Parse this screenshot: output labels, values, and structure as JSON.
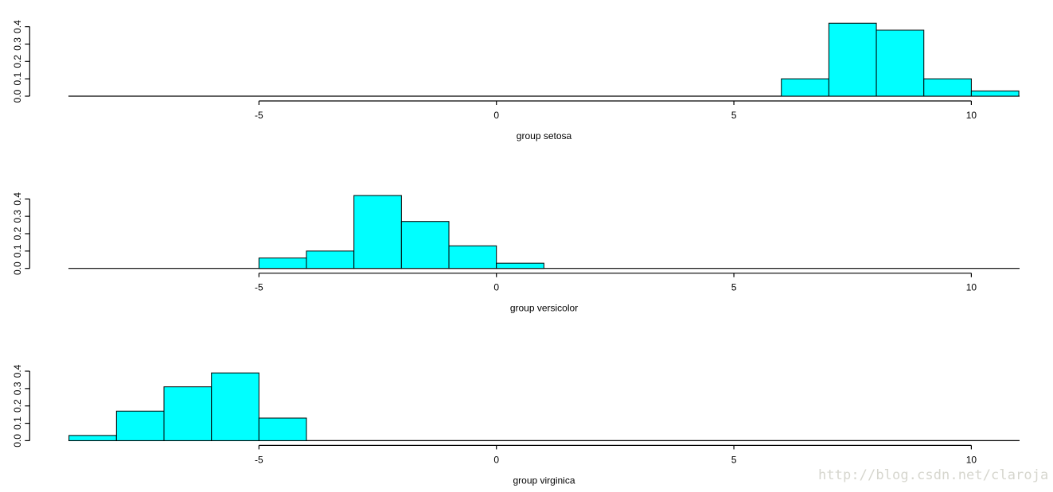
{
  "watermark": {
    "text": "http://blog.csdn.net/claroja",
    "color": "#d6d6ce"
  },
  "chart_data": [
    {
      "type": "bar",
      "subtype": "histogram",
      "title": "group setosa",
      "xlabel": "group setosa",
      "ylabel": "",
      "bin_edges": [
        6,
        7,
        8,
        9,
        10,
        11
      ],
      "densities": [
        0.1,
        0.42,
        0.38,
        0.1,
        0.03
      ],
      "x_ticks": [
        -5,
        0,
        5,
        10
      ],
      "x_tick_labels": [
        "-5",
        "0",
        "5",
        "10"
      ],
      "y_ticks": [
        0,
        0.1,
        0.2,
        0.3,
        0.4
      ],
      "y_tick_labels": [
        "0.0",
        "0.1",
        "0.2",
        "0.3",
        "0.4"
      ],
      "xlim": [
        -9,
        11
      ],
      "ylim": [
        0,
        0.4
      ],
      "grid": false,
      "bar_fill": "#00ffff",
      "bar_stroke": "#000000"
    },
    {
      "type": "bar",
      "subtype": "histogram",
      "title": "group versicolor",
      "xlabel": "group versicolor",
      "ylabel": "",
      "bin_edges": [
        -5,
        -4,
        -3,
        -2,
        -1,
        0,
        1
      ],
      "densities": [
        0.06,
        0.1,
        0.42,
        0.27,
        0.13,
        0.03
      ],
      "x_ticks": [
        -5,
        0,
        5,
        10
      ],
      "x_tick_labels": [
        "-5",
        "0",
        "5",
        "10"
      ],
      "y_ticks": [
        0,
        0.1,
        0.2,
        0.3,
        0.4
      ],
      "y_tick_labels": [
        "0.0",
        "0.1",
        "0.2",
        "0.3",
        "0.4"
      ],
      "xlim": [
        -9,
        11
      ],
      "ylim": [
        0,
        0.4
      ],
      "grid": false,
      "bar_fill": "#00ffff",
      "bar_stroke": "#000000"
    },
    {
      "type": "bar",
      "subtype": "histogram",
      "title": "group virginica",
      "xlabel": "group virginica",
      "ylabel": "",
      "bin_edges": [
        -9,
        -8,
        -7,
        -6,
        -5,
        -4
      ],
      "densities": [
        0.03,
        0.17,
        0.31,
        0.39,
        0.13
      ],
      "x_ticks": [
        -5,
        0,
        5,
        10
      ],
      "x_tick_labels": [
        "-5",
        "0",
        "5",
        "10"
      ],
      "y_ticks": [
        0,
        0.1,
        0.2,
        0.3,
        0.4
      ],
      "y_tick_labels": [
        "0.0",
        "0.1",
        "0.2",
        "0.3",
        "0.4"
      ],
      "xlim": [
        -9,
        11
      ],
      "ylim": [
        0,
        0.4
      ],
      "grid": false,
      "bar_fill": "#00ffff",
      "bar_stroke": "#000000"
    }
  ]
}
